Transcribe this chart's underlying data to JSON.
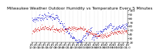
{
  "title": "Milwaukee Weather Outdoor Humidity vs Temperature Every 5 Minutes",
  "title_fontsize": 4.2,
  "blue_color": "#0000cc",
  "red_color": "#cc0000",
  "background_color": "#ffffff",
  "grid_color": "#aaaaaa",
  "ylim": [
    20,
    100
  ],
  "yticks": [
    20,
    30,
    40,
    50,
    60,
    70,
    80,
    90,
    100
  ],
  "ylabel_fontsize": 3.2,
  "xlabel_fontsize": 2.8,
  "n_points": 288,
  "seed": 7
}
